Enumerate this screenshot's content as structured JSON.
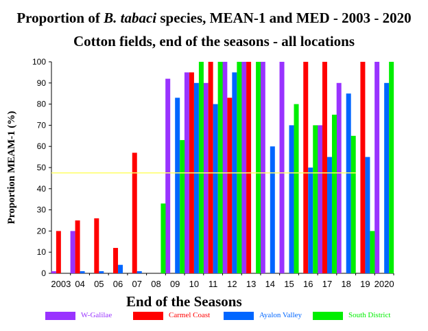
{
  "title": {
    "prefix": "Proportion of ",
    "italic": "B. tabaci",
    "suffix": " species, MEAN-1 and MED - 2003 - 2020",
    "line2": "Cotton fields, end of the seasons - all locations"
  },
  "chart_data": {
    "type": "bar",
    "xlabel": "End of the Seasons",
    "ylabel": "Proportion MEAM-1 (%)",
    "ylim": [
      0,
      100
    ],
    "yticks": [
      0,
      10,
      20,
      30,
      40,
      50,
      60,
      70,
      80,
      90,
      100
    ],
    "categories": [
      "2003",
      "04",
      "05",
      "06",
      "07",
      "08",
      "09",
      "10",
      "11",
      "12",
      "13",
      "14",
      "15",
      "16",
      "17",
      "18",
      "19",
      "2020"
    ],
    "reference_line": 47.5,
    "reference_color": "#ffff66",
    "legend_position": "bottom",
    "series": [
      {
        "name": "W-Galilae",
        "color": "#9933ff",
        "values": [
          1,
          20,
          0,
          0,
          0,
          0,
          92,
          95,
          90,
          100,
          100,
          100,
          100,
          0,
          70,
          90,
          0,
          100
        ]
      },
      {
        "name": "Carmel Coast",
        "color": "#ff0000",
        "values": [
          20,
          25,
          26,
          12,
          57,
          0,
          0,
          95,
          100,
          83,
          100,
          0,
          0,
          100,
          100,
          0,
          100,
          0
        ]
      },
      {
        "name": "Ayalon Valley",
        "color": "#0066ff",
        "values": [
          0,
          1,
          1,
          4,
          1,
          0,
          83,
          90,
          80,
          95,
          0,
          60,
          70,
          50,
          55,
          85,
          55,
          90
        ]
      },
      {
        "name": "South District",
        "color": "#00ee00",
        "values": [
          0,
          0,
          0,
          0,
          0,
          33,
          63,
          100,
          100,
          100,
          100,
          0,
          80,
          70,
          75,
          65,
          20,
          100
        ]
      }
    ]
  }
}
